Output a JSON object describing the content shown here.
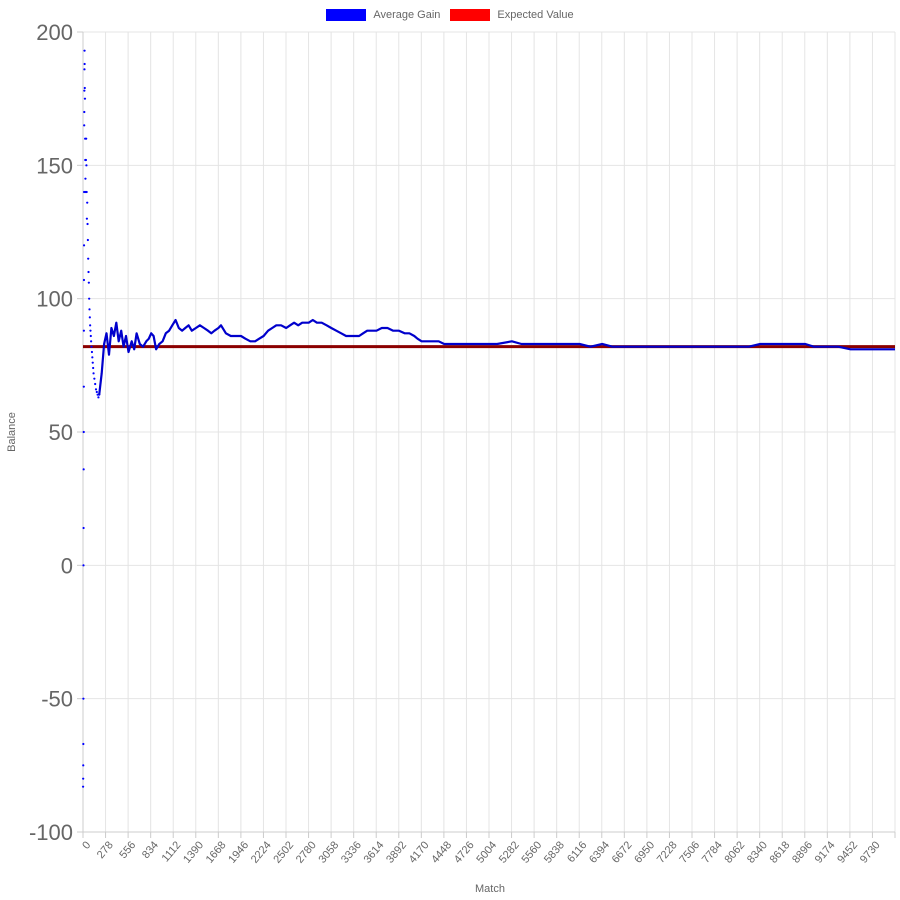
{
  "chart_data": {
    "type": "line",
    "title": "",
    "xlabel": "Match",
    "ylabel": "Balance",
    "ylim": [
      -100,
      200
    ],
    "xlim": [
      0,
      10000
    ],
    "y_ticks": [
      "200",
      "150",
      "100",
      "50",
      "0",
      "-50",
      "-100"
    ],
    "x_ticks": [
      "0",
      "278",
      "556",
      "834",
      "1112",
      "1390",
      "1668",
      "1946",
      "2224",
      "2502",
      "2780",
      "3058",
      "3336",
      "3614",
      "3892",
      "4170",
      "4448",
      "4726",
      "5004",
      "5282",
      "5560",
      "5838",
      "6116",
      "6394",
      "6672",
      "6950",
      "7228",
      "7506",
      "7784",
      "8062",
      "8340",
      "8618",
      "8896",
      "9174",
      "9452",
      "9730"
    ],
    "grid": true,
    "legend_position": "top",
    "series": [
      {
        "name": "Average Gain",
        "color": "#0000ff",
        "early_points": [
          [
            1,
            -83
          ],
          [
            2,
            -80
          ],
          [
            3,
            -75
          ],
          [
            4,
            -67
          ],
          [
            5,
            -50
          ],
          [
            6,
            0
          ],
          [
            7,
            14
          ],
          [
            8,
            36
          ],
          [
            9,
            50
          ],
          [
            10,
            67
          ],
          [
            11,
            88
          ],
          [
            12,
            107
          ],
          [
            13,
            120
          ],
          [
            14,
            140
          ],
          [
            15,
            165
          ],
          [
            16,
            170
          ],
          [
            17,
            178
          ],
          [
            18,
            186
          ],
          [
            19,
            193
          ],
          [
            20,
            188
          ],
          [
            22,
            179
          ],
          [
            24,
            175
          ],
          [
            26,
            160
          ],
          [
            28,
            152
          ],
          [
            30,
            145
          ],
          [
            33,
            140
          ],
          [
            36,
            152
          ],
          [
            39,
            160
          ],
          [
            42,
            150
          ],
          [
            45,
            140
          ],
          [
            48,
            130
          ],
          [
            52,
            136
          ],
          [
            56,
            128
          ],
          [
            60,
            122
          ],
          [
            64,
            115
          ],
          [
            68,
            110
          ],
          [
            72,
            106
          ],
          [
            76,
            100
          ],
          [
            80,
            96
          ],
          [
            84,
            93
          ],
          [
            88,
            90
          ],
          [
            92,
            88
          ],
          [
            96,
            86
          ],
          [
            100,
            84
          ],
          [
            105,
            82
          ],
          [
            110,
            80
          ],
          [
            115,
            78
          ],
          [
            120,
            76
          ],
          [
            125,
            74
          ],
          [
            130,
            72
          ],
          [
            140,
            70
          ],
          [
            150,
            68
          ],
          [
            160,
            66
          ],
          [
            170,
            65
          ],
          [
            180,
            64
          ],
          [
            190,
            63
          ],
          [
            200,
            64
          ]
        ],
        "points": [
          [
            200,
            64
          ],
          [
            230,
            72
          ],
          [
            260,
            83
          ],
          [
            290,
            87
          ],
          [
            320,
            79
          ],
          [
            350,
            89
          ],
          [
            380,
            86
          ],
          [
            410,
            91
          ],
          [
            440,
            84
          ],
          [
            470,
            88
          ],
          [
            500,
            82
          ],
          [
            530,
            86
          ],
          [
            560,
            80
          ],
          [
            600,
            84
          ],
          [
            630,
            81
          ],
          [
            660,
            87
          ],
          [
            700,
            83
          ],
          [
            740,
            82
          ],
          [
            780,
            84
          ],
          [
            810,
            85
          ],
          [
            840,
            87
          ],
          [
            870,
            86
          ],
          [
            900,
            81
          ],
          [
            940,
            83
          ],
          [
            980,
            84
          ],
          [
            1020,
            87
          ],
          [
            1060,
            88
          ],
          [
            1100,
            90
          ],
          [
            1140,
            92
          ],
          [
            1180,
            89
          ],
          [
            1220,
            88
          ],
          [
            1260,
            89
          ],
          [
            1300,
            90
          ],
          [
            1340,
            88
          ],
          [
            1390,
            89
          ],
          [
            1440,
            90
          ],
          [
            1490,
            89
          ],
          [
            1540,
            88
          ],
          [
            1580,
            87
          ],
          [
            1620,
            88
          ],
          [
            1668,
            89
          ],
          [
            1700,
            90
          ],
          [
            1760,
            87
          ],
          [
            1820,
            86
          ],
          [
            1880,
            86
          ],
          [
            1946,
            86
          ],
          [
            2000,
            85
          ],
          [
            2060,
            84
          ],
          [
            2120,
            84
          ],
          [
            2170,
            85
          ],
          [
            2224,
            86
          ],
          [
            2280,
            88
          ],
          [
            2330,
            89
          ],
          [
            2380,
            90
          ],
          [
            2440,
            90
          ],
          [
            2502,
            89
          ],
          [
            2550,
            90
          ],
          [
            2600,
            91
          ],
          [
            2650,
            90
          ],
          [
            2700,
            91
          ],
          [
            2780,
            91
          ],
          [
            2830,
            92
          ],
          [
            2880,
            91
          ],
          [
            2940,
            91
          ],
          [
            3000,
            90
          ],
          [
            3058,
            89
          ],
          [
            3120,
            88
          ],
          [
            3180,
            87
          ],
          [
            3240,
            86
          ],
          [
            3300,
            86
          ],
          [
            3336,
            86
          ],
          [
            3400,
            86
          ],
          [
            3450,
            87
          ],
          [
            3500,
            88
          ],
          [
            3560,
            88
          ],
          [
            3614,
            88
          ],
          [
            3680,
            89
          ],
          [
            3750,
            89
          ],
          [
            3820,
            88
          ],
          [
            3892,
            88
          ],
          [
            3960,
            87
          ],
          [
            4020,
            87
          ],
          [
            4080,
            86
          ],
          [
            4120,
            85
          ],
          [
            4170,
            84
          ],
          [
            4220,
            84
          ],
          [
            4300,
            84
          ],
          [
            4380,
            84
          ],
          [
            4448,
            83
          ],
          [
            4530,
            83
          ],
          [
            4600,
            83
          ],
          [
            4726,
            83
          ],
          [
            4850,
            83
          ],
          [
            5004,
            83
          ],
          [
            5100,
            83
          ],
          [
            5282,
            84
          ],
          [
            5400,
            83
          ],
          [
            5560,
            83
          ],
          [
            5700,
            83
          ],
          [
            5838,
            83
          ],
          [
            5950,
            83
          ],
          [
            6116,
            83
          ],
          [
            6250,
            82
          ],
          [
            6394,
            83
          ],
          [
            6520,
            82
          ],
          [
            6672,
            82
          ],
          [
            6800,
            82
          ],
          [
            6950,
            82
          ],
          [
            7100,
            82
          ],
          [
            7228,
            82
          ],
          [
            7380,
            82
          ],
          [
            7506,
            82
          ],
          [
            7650,
            82
          ],
          [
            7784,
            82
          ],
          [
            7900,
            82
          ],
          [
            8062,
            82
          ],
          [
            8200,
            82
          ],
          [
            8340,
            83
          ],
          [
            8480,
            83
          ],
          [
            8618,
            83
          ],
          [
            8750,
            83
          ],
          [
            8896,
            83
          ],
          [
            9000,
            82
          ],
          [
            9100,
            82
          ],
          [
            9174,
            82
          ],
          [
            9300,
            82
          ],
          [
            9452,
            81
          ],
          [
            9600,
            81
          ],
          [
            9730,
            81
          ],
          [
            9850,
            81
          ],
          [
            10000,
            81
          ]
        ]
      },
      {
        "name": "Expected Value",
        "color": "#ff0000",
        "constant": 82
      }
    ]
  }
}
